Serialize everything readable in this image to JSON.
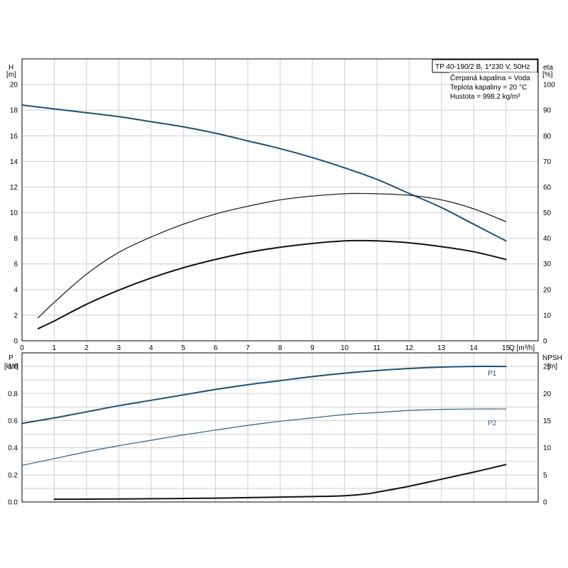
{
  "chart_data": [
    {
      "type": "line",
      "panel": "top",
      "ylabel_left": "H",
      "ylabel_left_unit": "[m]",
      "ylabel_right": "eta",
      "ylabel_right_unit": "[%]",
      "xlabel": "Q [m³/h]",
      "xlim": [
        0,
        16
      ],
      "ylim_left": [
        0,
        22
      ],
      "ylim_right": [
        0,
        110
      ],
      "x_ticks": [
        0,
        1,
        2,
        3,
        4,
        5,
        6,
        7,
        8,
        9,
        10,
        11,
        12,
        13,
        14,
        15
      ],
      "y_left_ticks": [
        0,
        2,
        4,
        6,
        8,
        10,
        12,
        14,
        16,
        18,
        20
      ],
      "y_right_ticks": [
        0,
        10,
        20,
        30,
        40,
        50,
        60,
        70,
        80,
        90,
        100
      ],
      "grid": true,
      "legend_lines": [
        "TP 40-190/2 B, 1*230 V, 50Hz",
        "Čerpaná kapalina = Voda",
        "Teplota kapaliny = 20 °C",
        "Hustota = 998.2 kg/m³"
      ],
      "series": [
        {
          "axis": "left",
          "color": "#1f4e79",
          "x": [
            0,
            1,
            2,
            3,
            4,
            5,
            6,
            7,
            8,
            9,
            10,
            11,
            12,
            13,
            14,
            15
          ],
          "y": [
            18.4,
            18.1,
            17.8,
            17.5,
            17.1,
            16.7,
            16.2,
            15.6,
            15.0,
            14.3,
            13.5,
            12.6,
            11.5,
            10.4,
            9.1,
            7.8
          ]
        },
        {
          "axis": "right",
          "color": "#222222",
          "x": [
            0.5,
            1,
            2,
            3,
            4,
            5,
            6,
            7,
            8,
            9,
            10,
            10.5,
            11,
            12,
            13,
            14,
            15
          ],
          "y": [
            9,
            15,
            26,
            34.5,
            40.5,
            45.5,
            49.5,
            52.5,
            55,
            56.5,
            57.4,
            57.5,
            57.4,
            56.8,
            55,
            51.5,
            46.5
          ]
        },
        {
          "axis": "left",
          "color": "#111111",
          "x": [
            0.5,
            1,
            2,
            3,
            4,
            5,
            6,
            7,
            8,
            9,
            10,
            10.5,
            11,
            12,
            13,
            14,
            15
          ],
          "y": [
            0.95,
            1.55,
            2.85,
            3.95,
            4.9,
            5.7,
            6.35,
            6.9,
            7.3,
            7.6,
            7.8,
            7.82,
            7.8,
            7.65,
            7.35,
            6.95,
            6.35
          ]
        }
      ]
    },
    {
      "type": "line",
      "panel": "bottom",
      "ylabel_left": "P",
      "ylabel_left_unit": "[kW]",
      "ylabel_right": "NPSH",
      "ylabel_right_unit": "[m]",
      "xlim": [
        0,
        16
      ],
      "ylim_left": [
        0,
        1.1
      ],
      "ylim_right": [
        0,
        27.5
      ],
      "y_left_ticks": [
        0.0,
        0.2,
        0.4,
        0.6,
        0.8,
        1.0
      ],
      "y_left_tick_labels": [
        "0.0",
        "0.2",
        "0.4",
        "0.6",
        "0.8",
        "1.0"
      ],
      "y_right_ticks": [
        0,
        5,
        10,
        15,
        20,
        25
      ],
      "grid": true,
      "series": [
        {
          "name": "P1",
          "axis": "left",
          "color": "#1f4e79",
          "x": [
            0,
            1,
            2,
            3,
            4,
            5,
            6,
            7,
            8,
            9,
            10,
            11,
            12,
            13,
            14,
            15
          ],
          "y": [
            0.58,
            0.62,
            0.665,
            0.71,
            0.75,
            0.79,
            0.83,
            0.865,
            0.895,
            0.925,
            0.95,
            0.97,
            0.985,
            0.995,
            1.0,
            1.0
          ]
        },
        {
          "name": "P2",
          "axis": "left",
          "color": "#2b5f8f",
          "x": [
            0,
            1,
            2,
            3,
            4,
            5,
            6,
            7,
            8,
            9,
            10,
            11,
            12,
            13,
            14,
            15
          ],
          "y": [
            0.27,
            0.32,
            0.37,
            0.415,
            0.455,
            0.495,
            0.53,
            0.565,
            0.595,
            0.62,
            0.645,
            0.66,
            0.675,
            0.683,
            0.686,
            0.686
          ]
        },
        {
          "axis": "right",
          "color": "#111111",
          "x": [
            1,
            2,
            3,
            4,
            5,
            6,
            7,
            8,
            9,
            10,
            10.7,
            11,
            12,
            13,
            14,
            15
          ],
          "y": [
            0.5,
            0.52,
            0.56,
            0.6,
            0.65,
            0.7,
            0.8,
            0.9,
            1.0,
            1.15,
            1.5,
            1.8,
            2.9,
            4.2,
            5.5,
            6.9
          ]
        }
      ]
    }
  ]
}
